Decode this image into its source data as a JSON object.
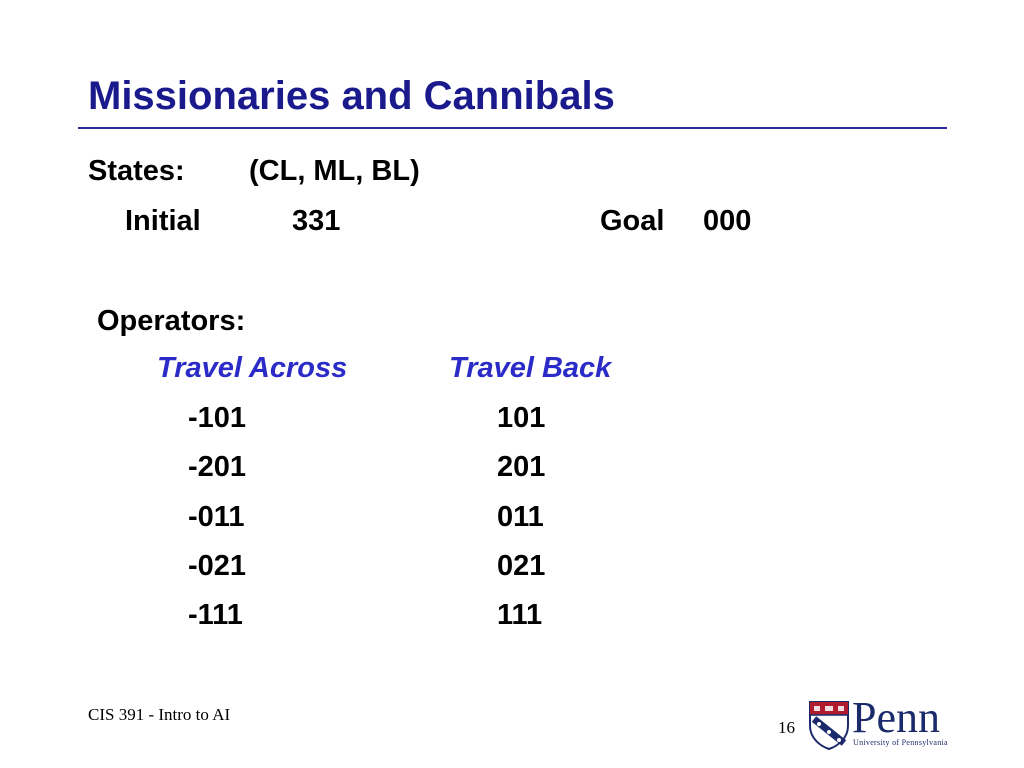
{
  "slide": {
    "title": "Missionaries and Cannibals",
    "states_label": "States:",
    "states_value": "(CL, ML, BL)",
    "initial_label": "Initial",
    "initial_value": "331",
    "goal_label": "Goal",
    "goal_value": "000",
    "operators_label": "Operators:",
    "travel_across_label": "Travel Across",
    "travel_back_label": "Travel Back",
    "travel_across": [
      "-101",
      "-201",
      "-011",
      "-021",
      "-111"
    ],
    "travel_back": [
      "101",
      "201",
      "011",
      "021",
      "111"
    ]
  },
  "footer": {
    "course": "CIS 391 - Intro to AI",
    "page_number": "16"
  },
  "logo": {
    "wordmark": "Penn",
    "subtitle": "University of Pennsylvania",
    "icon": "penn-shield-icon"
  },
  "colors": {
    "title": "#1a1a8c",
    "rule": "#2b2b9a",
    "operator_headers": "#2b2bc8"
  }
}
